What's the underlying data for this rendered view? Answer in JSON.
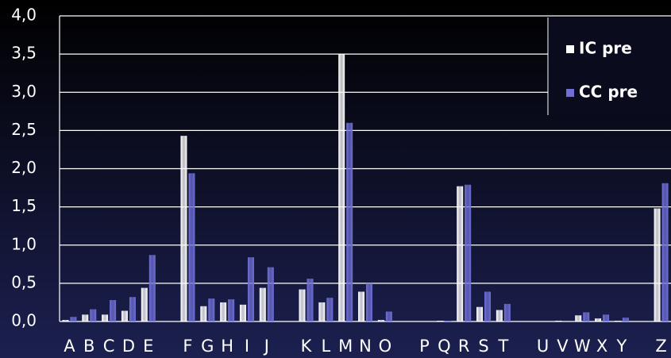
{
  "chart_data": {
    "type": "bar",
    "categories": [
      "A",
      "B",
      "C",
      "D",
      "E",
      null,
      "F",
      "G",
      "H",
      "I",
      "J",
      null,
      "K",
      "L",
      "M",
      "N",
      "O",
      null,
      "P",
      "Q",
      "R",
      "S",
      "T",
      null,
      "U",
      "V",
      "W",
      "X",
      "Y",
      null,
      "Z"
    ],
    "series": [
      {
        "name": "IC pre",
        "color": "#ffffff",
        "values": [
          0.02,
          0.09,
          0.09,
          0.14,
          0.44,
          null,
          2.43,
          0.2,
          0.25,
          0.22,
          0.44,
          null,
          0.42,
          0.25,
          3.5,
          0.39,
          0.02,
          null,
          0,
          0.01,
          1.77,
          0.19,
          0.15,
          null,
          0,
          0.01,
          0.08,
          0.04,
          0.01,
          null,
          1.48
        ]
      },
      {
        "name": "CC pre",
        "color": "#6f6fd6",
        "values": [
          0.06,
          0.16,
          0.28,
          0.32,
          0.87,
          null,
          1.94,
          0.3,
          0.29,
          0.84,
          0.71,
          null,
          0.56,
          0.31,
          2.6,
          0.5,
          0.13,
          null,
          0,
          0.01,
          1.79,
          0.39,
          0.23,
          null,
          0,
          0,
          0.12,
          0.09,
          0.05,
          null,
          1.81
        ]
      }
    ],
    "ylim": [
      0,
      4
    ],
    "yticks": [
      {
        "value": 0,
        "label": "0,0"
      },
      {
        "value": 0.5,
        "label": "0,5"
      },
      {
        "value": 1,
        "label": "1,0"
      },
      {
        "value": 1.5,
        "label": "1,5"
      },
      {
        "value": 2,
        "label": "2,0"
      },
      {
        "value": 2.5,
        "label": "2,5"
      },
      {
        "value": 3,
        "label": "3,0"
      },
      {
        "value": 3.5,
        "label": "3,5"
      },
      {
        "value": 4,
        "label": "4,0"
      }
    ],
    "grid": true,
    "legend": "upper right"
  }
}
